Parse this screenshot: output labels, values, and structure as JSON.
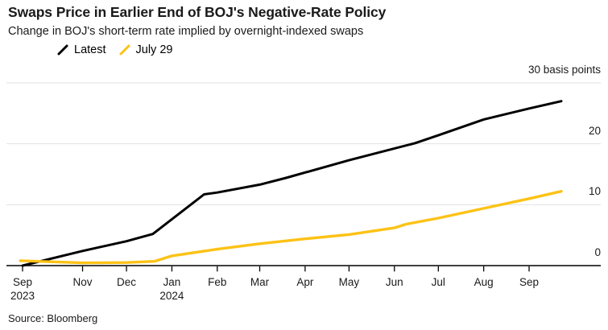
{
  "chart_data": {
    "type": "line",
    "title": "Swaps Price in Earlier End of BOJ's Negative-Rate Policy",
    "subtitle": "Change in BOJ's short-term rate implied by overnight-indexed swaps",
    "source": "Source: Bloomberg",
    "unit_label": "30 basis points",
    "ylabel": "basis points",
    "ylim": [
      0,
      30
    ],
    "grid": "horizontal",
    "legend_position": "top-left",
    "y_ticks": [
      {
        "value": 30,
        "label": "30 basis points"
      },
      {
        "value": 20,
        "label": "20"
      },
      {
        "value": 10,
        "label": "10"
      },
      {
        "value": 0,
        "label": "0"
      }
    ],
    "x_unit": "days from left edge of data (late Sep 2023)",
    "x_ticks": [
      {
        "day": 0,
        "label": "Sep",
        "year": "2023"
      },
      {
        "day": 41,
        "label": "Nov",
        "year": ""
      },
      {
        "day": 71,
        "label": "Dec",
        "year": ""
      },
      {
        "day": 102,
        "label": "Jan",
        "year": "2024"
      },
      {
        "day": 133,
        "label": "Feb",
        "year": ""
      },
      {
        "day": 162,
        "label": "Mar",
        "year": ""
      },
      {
        "day": 193,
        "label": "Apr",
        "year": ""
      },
      {
        "day": 223,
        "label": "May",
        "year": ""
      },
      {
        "day": 254,
        "label": "Jun",
        "year": ""
      },
      {
        "day": 284,
        "label": "Jul",
        "year": ""
      },
      {
        "day": 315,
        "label": "Aug",
        "year": ""
      },
      {
        "day": 346,
        "label": "Sep",
        "year": ""
      }
    ],
    "series": [
      {
        "name": "Latest",
        "color": "#000000",
        "width": 3,
        "points": [
          [
            0,
            0
          ],
          [
            41,
            2.4
          ],
          [
            71,
            4.0
          ],
          [
            89,
            5.2
          ],
          [
            124,
            11.7
          ],
          [
            133,
            12.0
          ],
          [
            162,
            13.3
          ],
          [
            180,
            14.4
          ],
          [
            223,
            17.3
          ],
          [
            268,
            20.1
          ],
          [
            284,
            21.4
          ],
          [
            315,
            24.0
          ],
          [
            346,
            25.8
          ],
          [
            368,
            27.0
          ]
        ]
      },
      {
        "name": "July 29",
        "color": "#fcc216",
        "width": 3.4,
        "points": [
          [
            -1.5,
            0.8
          ],
          [
            41,
            0.45
          ],
          [
            71,
            0.5
          ],
          [
            90,
            0.7
          ],
          [
            102,
            1.6
          ],
          [
            133,
            2.7
          ],
          [
            162,
            3.6
          ],
          [
            193,
            4.4
          ],
          [
            223,
            5.1
          ],
          [
            254,
            6.2
          ],
          [
            262,
            6.8
          ],
          [
            284,
            7.8
          ],
          [
            315,
            9.4
          ],
          [
            346,
            11.0
          ],
          [
            368,
            12.2
          ]
        ]
      }
    ]
  }
}
